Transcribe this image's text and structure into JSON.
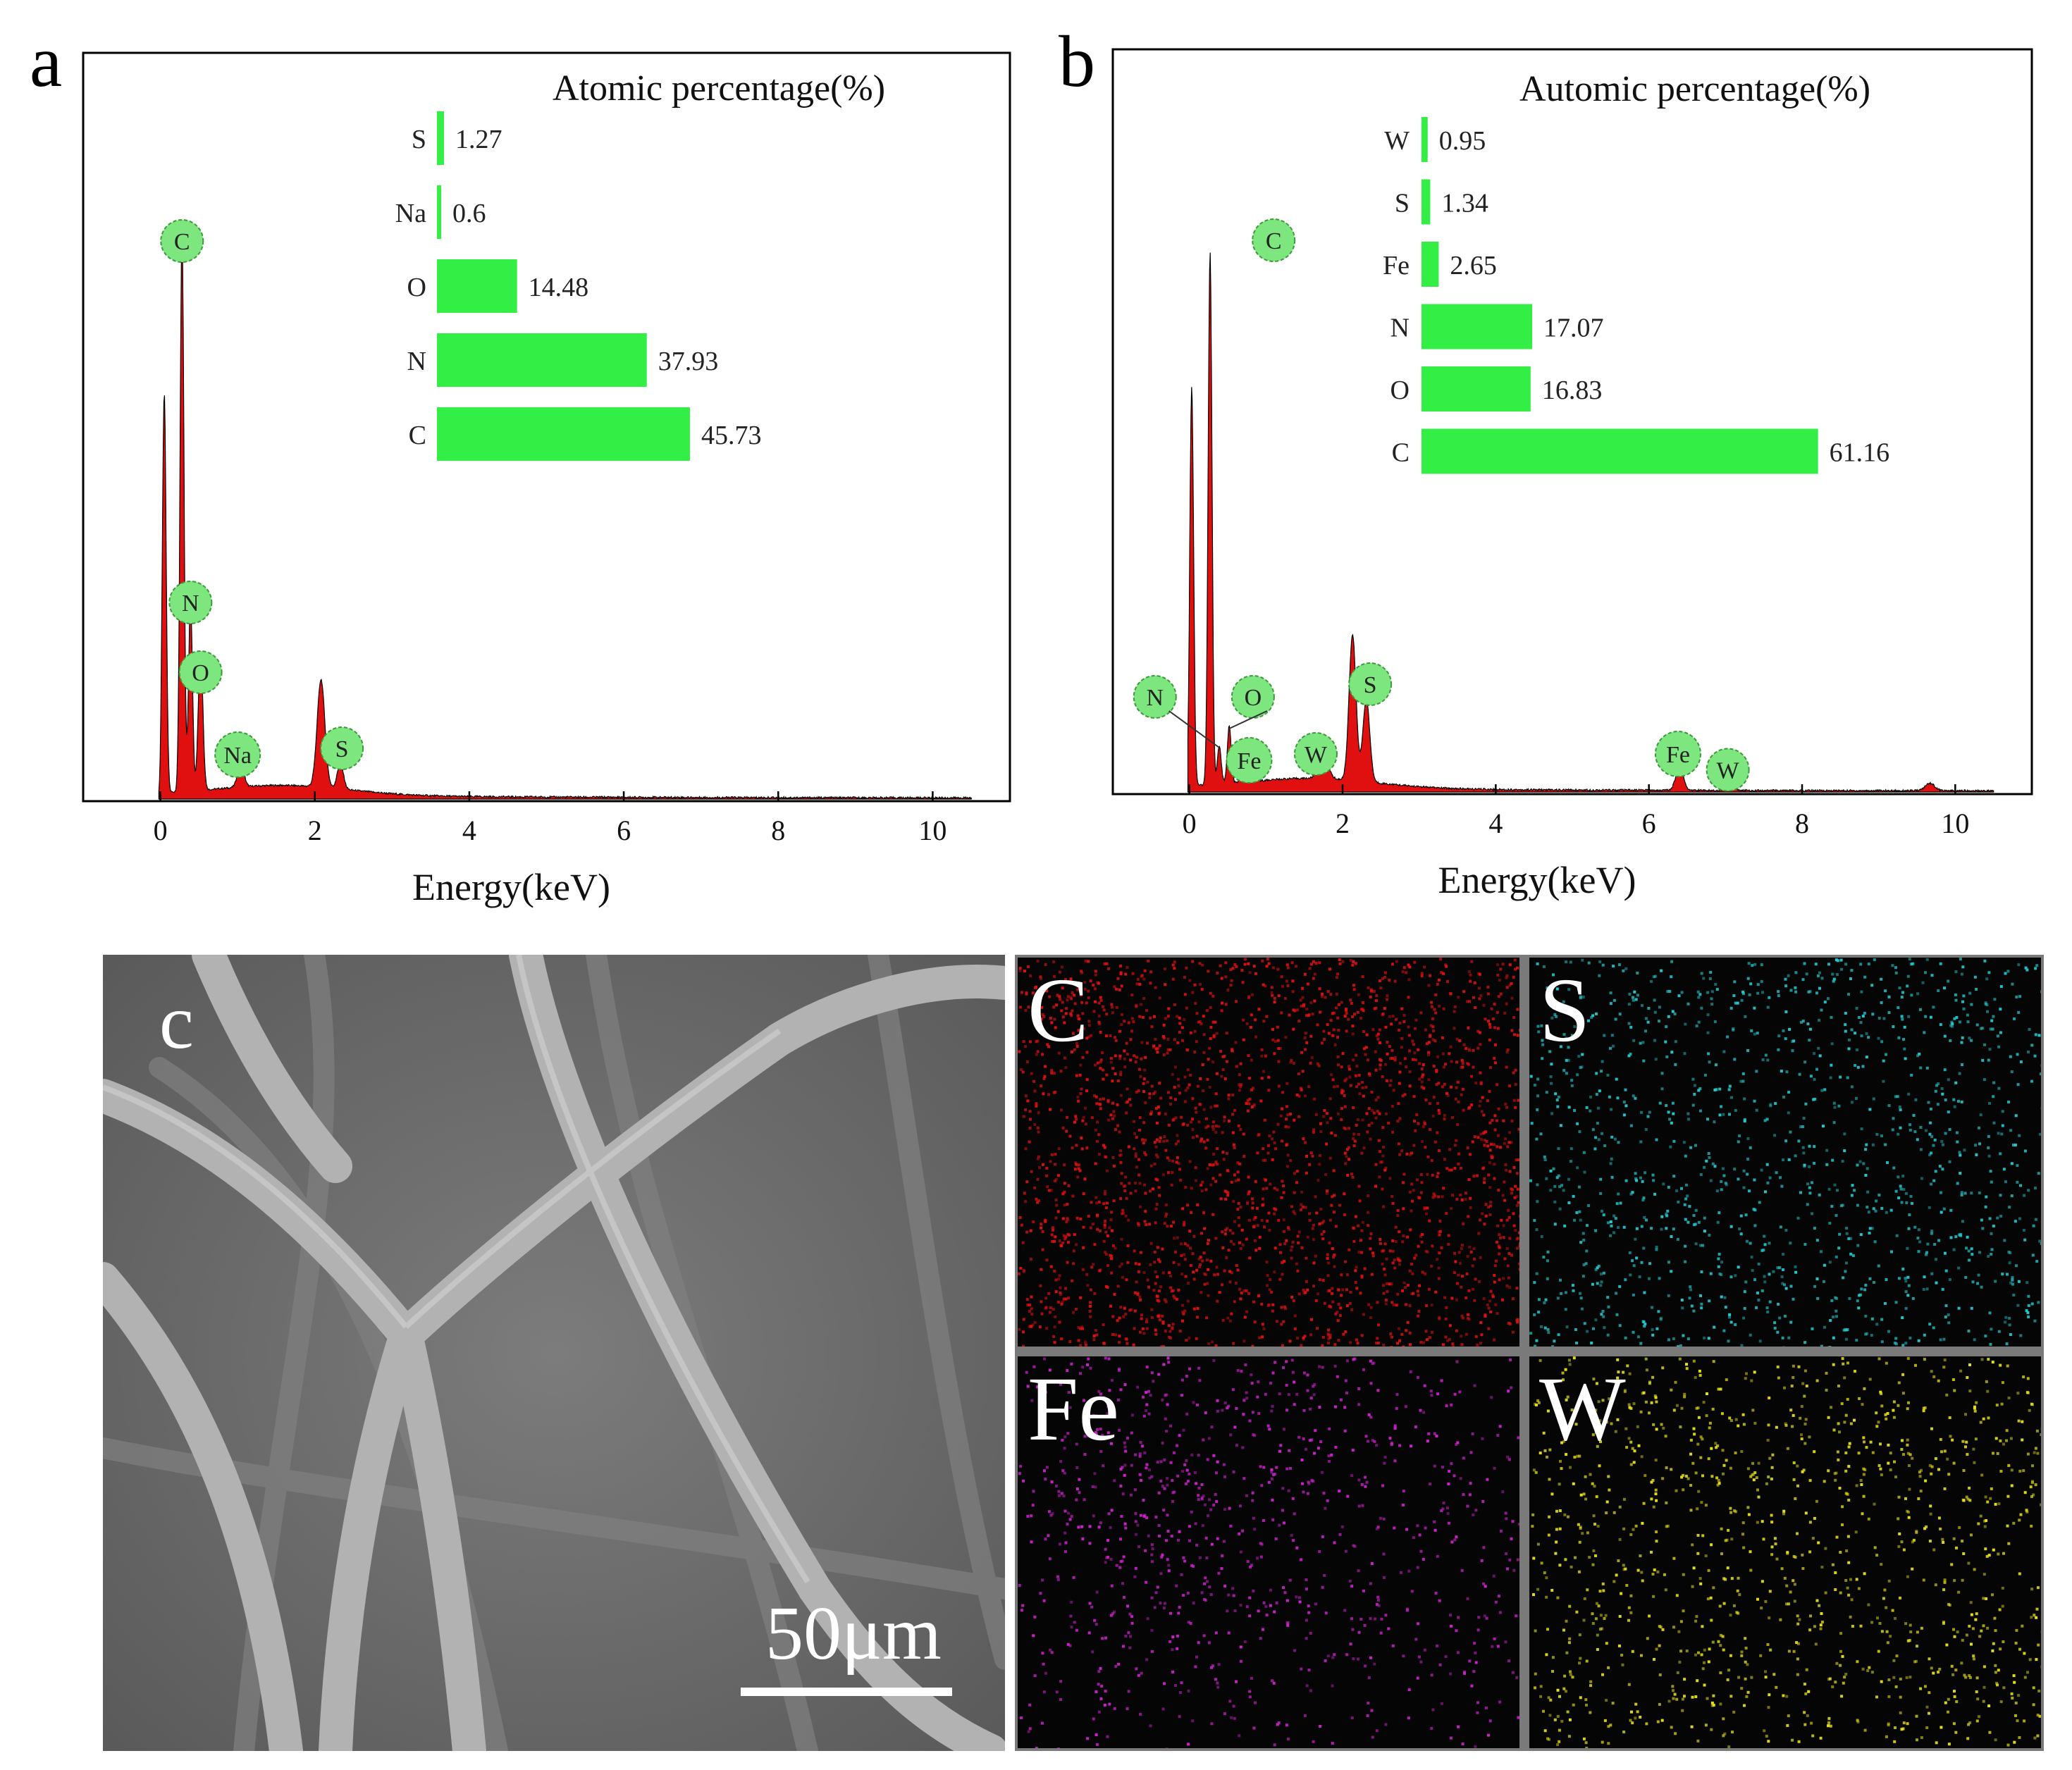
{
  "figure": {
    "panel_a": {
      "letter": "a"
    },
    "panel_b": {
      "letter": "b"
    },
    "panel_c": {
      "letter": "c",
      "scale_label": "50μm"
    },
    "maps": [
      {
        "label": "C",
        "color": "#e01010"
      },
      {
        "label": "S",
        "color": "#22c8cc"
      },
      {
        "label": "Fe",
        "color": "#d020d0"
      },
      {
        "label": "W",
        "color": "#e6e016"
      }
    ]
  },
  "chart_data": [
    {
      "type": "area",
      "panel": "a",
      "xlabel": "Energy(keV)",
      "ylabel": "",
      "xlim": [
        -1,
        11
      ],
      "xticks": [
        0,
        2,
        4,
        6,
        8,
        10
      ],
      "color": "#e01010",
      "peaks": [
        {
          "x": 0.05,
          "h": 0.63,
          "w": 0.025
        },
        {
          "x": 0.28,
          "h": 0.88,
          "w": 0.025
        },
        {
          "x": 0.39,
          "h": 0.3,
          "w": 0.025
        },
        {
          "x": 0.52,
          "h": 0.22,
          "w": 0.03
        },
        {
          "x": 1.04,
          "h": 0.04,
          "w": 0.04
        },
        {
          "x": 2.08,
          "h": 0.17,
          "w": 0.05
        },
        {
          "x": 2.33,
          "h": 0.04,
          "w": 0.04
        }
      ],
      "peak_labels": [
        {
          "text": "C",
          "x": 0.28,
          "y": 0.88
        },
        {
          "text": "N",
          "x": 0.39,
          "y": 0.31
        },
        {
          "text": "O",
          "x": 0.52,
          "y": 0.2
        },
        {
          "text": "Na",
          "x": 1.0,
          "y": 0.07
        },
        {
          "text": "S",
          "x": 2.35,
          "y": 0.08
        }
      ],
      "inset": {
        "type": "bar",
        "title": "Atomic percentage(%)",
        "categories": [
          "S",
          "Na",
          "O",
          "N",
          "C"
        ],
        "values": [
          1.27,
          0.6,
          14.48,
          37.93,
          45.73
        ],
        "value_labels": [
          "1.27",
          "0.6",
          "14.48",
          "37.93",
          "45.73"
        ],
        "color": "#33ee44"
      }
    },
    {
      "type": "area",
      "panel": "b",
      "xlabel": "Energy(keV)",
      "ylabel": "",
      "xlim": [
        -1,
        11
      ],
      "xticks": [
        0,
        2,
        4,
        6,
        8,
        10
      ],
      "color": "#e01010",
      "peaks": [
        {
          "x": 0.03,
          "h": 0.63,
          "w": 0.025
        },
        {
          "x": 0.27,
          "h": 0.84,
          "w": 0.025
        },
        {
          "x": 0.39,
          "h": 0.06,
          "w": 0.025
        },
        {
          "x": 0.52,
          "h": 0.09,
          "w": 0.025
        },
        {
          "x": 0.71,
          "h": 0.025,
          "w": 0.03
        },
        {
          "x": 1.75,
          "h": 0.04,
          "w": 0.06
        },
        {
          "x": 2.13,
          "h": 0.23,
          "w": 0.045
        },
        {
          "x": 2.31,
          "h": 0.13,
          "w": 0.045
        },
        {
          "x": 6.4,
          "h": 0.035,
          "w": 0.05
        },
        {
          "x": 7.06,
          "h": 0.01,
          "w": 0.05
        },
        {
          "x": 9.67,
          "h": 0.012,
          "w": 0.06
        }
      ],
      "peak_labels": [
        {
          "text": "C",
          "x": 1.1,
          "y": 0.87
        },
        {
          "text": "N",
          "x": -0.45,
          "y": 0.15
        },
        {
          "text": "O",
          "x": 0.83,
          "y": 0.15
        },
        {
          "text": "Fe",
          "x": 0.78,
          "y": 0.05
        },
        {
          "text": "W",
          "x": 1.65,
          "y": 0.06
        },
        {
          "text": "S",
          "x": 2.36,
          "y": 0.17
        },
        {
          "text": "Fe",
          "x": 6.38,
          "y": 0.06
        },
        {
          "text": "W",
          "x": 7.03,
          "y": 0.035
        }
      ],
      "inset": {
        "type": "bar",
        "title": "Automic percentage(%)",
        "categories": [
          "W",
          "S",
          "Fe",
          "N",
          "O",
          "C"
        ],
        "values": [
          0.95,
          1.34,
          2.65,
          17.07,
          16.83,
          61.16
        ],
        "value_labels": [
          "0.95",
          "1.34",
          "2.65",
          "17.07",
          "16.83",
          "61.16"
        ],
        "color": "#33ee44"
      }
    }
  ]
}
